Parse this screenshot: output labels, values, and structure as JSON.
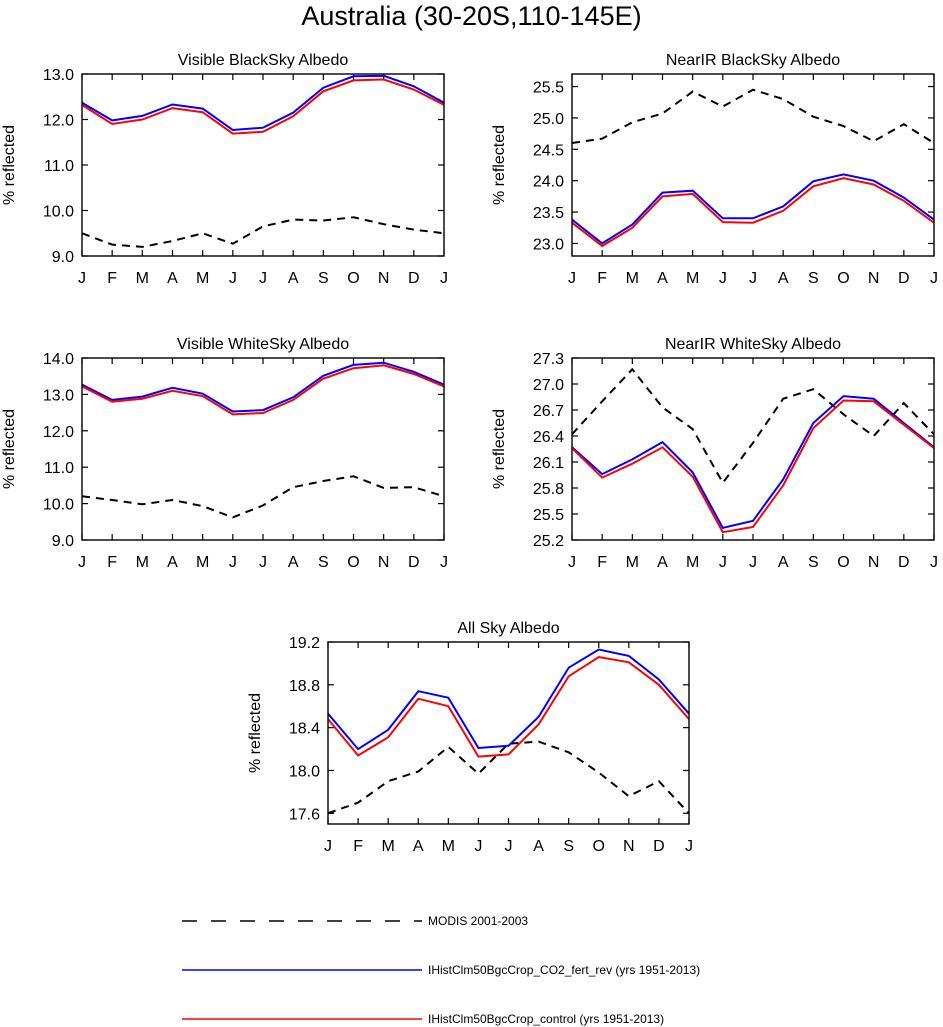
{
  "title": "Australia (30-20S,110-145E)",
  "chart_data": [
    {
      "type": "line",
      "title": "Visible BlackSky Albedo",
      "ylabel": "% reflected",
      "categories": [
        "J",
        "F",
        "M",
        "A",
        "M",
        "J",
        "J",
        "A",
        "S",
        "O",
        "N",
        "D",
        "J"
      ],
      "ylim": [
        9.0,
        13.0
      ],
      "yticks": [
        "9.0",
        "10.0",
        "11.0",
        "12.0",
        "13.0"
      ],
      "series": [
        {
          "name": "MODIS 2001-2003",
          "values": [
            9.5,
            9.25,
            9.2,
            9.33,
            9.5,
            9.27,
            9.65,
            9.8,
            9.78,
            9.85,
            9.7,
            9.58,
            9.5
          ]
        },
        {
          "name": "IHistClm50BgcCrop_CO2_fert_rev (yrs 1951-2013)",
          "values": [
            12.37,
            11.98,
            12.08,
            12.33,
            12.24,
            11.77,
            11.82,
            12.15,
            12.7,
            12.95,
            12.96,
            12.73,
            12.37
          ]
        },
        {
          "name": "IHistClm50BgcCrop_control (yrs 1951-2013)",
          "values": [
            12.32,
            11.9,
            12.0,
            12.25,
            12.16,
            11.69,
            11.73,
            12.07,
            12.62,
            12.86,
            12.88,
            12.66,
            12.32
          ]
        }
      ]
    },
    {
      "type": "line",
      "title": "NearIR BlackSky Albedo",
      "ylabel": "% reflected",
      "categories": [
        "J",
        "F",
        "M",
        "A",
        "M",
        "J",
        "J",
        "A",
        "S",
        "O",
        "N",
        "D",
        "J"
      ],
      "ylim": [
        22.8,
        25.7
      ],
      "yticks": [
        "23.0",
        "23.5",
        "24.0",
        "24.5",
        "25.0",
        "25.5"
      ],
      "series": [
        {
          "name": "MODIS 2001-2003",
          "values": [
            24.6,
            24.67,
            24.93,
            25.07,
            25.42,
            25.18,
            25.45,
            25.3,
            25.02,
            24.87,
            24.63,
            24.9,
            24.6
          ]
        },
        {
          "name": "IHistClm50BgcCrop_CO2_fert_rev (yrs 1951-2013)",
          "values": [
            23.38,
            23.0,
            23.3,
            23.81,
            23.84,
            23.4,
            23.4,
            23.59,
            23.99,
            24.1,
            24.0,
            23.73,
            23.38
          ]
        },
        {
          "name": "IHistClm50BgcCrop_control (yrs 1951-2013)",
          "values": [
            23.33,
            22.96,
            23.25,
            23.75,
            23.79,
            23.34,
            23.33,
            23.52,
            23.91,
            24.04,
            23.94,
            23.68,
            23.33
          ]
        }
      ]
    },
    {
      "type": "line",
      "title": "Visible WhiteSky Albedo",
      "ylabel": "% reflected",
      "categories": [
        "J",
        "F",
        "M",
        "A",
        "M",
        "J",
        "J",
        "A",
        "S",
        "O",
        "N",
        "D",
        "J"
      ],
      "ylim": [
        9.0,
        14.0
      ],
      "yticks": [
        "9.0",
        "10.0",
        "11.0",
        "12.0",
        "13.0",
        "14.0"
      ],
      "series": [
        {
          "name": "MODIS 2001-2003",
          "values": [
            10.2,
            10.1,
            9.98,
            10.1,
            9.93,
            9.62,
            9.95,
            10.45,
            10.62,
            10.75,
            10.43,
            10.45,
            10.2
          ]
        },
        {
          "name": "IHistClm50BgcCrop_CO2_fert_rev (yrs 1951-2013)",
          "values": [
            13.27,
            12.85,
            12.94,
            13.18,
            13.02,
            12.53,
            12.57,
            12.92,
            13.51,
            13.81,
            13.87,
            13.62,
            13.27
          ]
        },
        {
          "name": "IHistClm50BgcCrop_control (yrs 1951-2013)",
          "values": [
            13.22,
            12.8,
            12.88,
            13.1,
            12.95,
            12.45,
            12.49,
            12.85,
            13.43,
            13.72,
            13.8,
            13.56,
            13.22
          ]
        }
      ]
    },
    {
      "type": "line",
      "title": "NearIR WhiteSky Albedo",
      "ylabel": "% reflected",
      "categories": [
        "J",
        "F",
        "M",
        "A",
        "M",
        "J",
        "J",
        "A",
        "S",
        "O",
        "N",
        "D",
        "J"
      ],
      "ylim": [
        25.2,
        27.3
      ],
      "yticks": [
        "25.2",
        "25.5",
        "25.8",
        "26.1",
        "26.4",
        "26.7",
        "27.0",
        "27.3"
      ],
      "series": [
        {
          "name": "MODIS 2001-2003",
          "values": [
            26.42,
            26.8,
            27.17,
            26.73,
            26.48,
            25.86,
            26.32,
            26.83,
            26.94,
            26.65,
            26.4,
            26.78,
            26.42
          ]
        },
        {
          "name": "IHistClm50BgcCrop_CO2_fert_rev (yrs 1951-2013)",
          "values": [
            26.27,
            25.96,
            26.13,
            26.33,
            25.98,
            25.34,
            25.42,
            25.9,
            26.55,
            26.86,
            26.83,
            26.55,
            26.27
          ]
        },
        {
          "name": "IHistClm50BgcCrop_control (yrs 1951-2013)",
          "values": [
            26.26,
            25.92,
            26.08,
            26.27,
            25.93,
            25.29,
            25.35,
            25.83,
            26.49,
            26.81,
            26.8,
            26.53,
            26.26
          ]
        }
      ]
    },
    {
      "type": "line",
      "title": "All Sky Albedo",
      "ylabel": "% reflected",
      "categories": [
        "J",
        "F",
        "M",
        "A",
        "M",
        "J",
        "J",
        "A",
        "S",
        "O",
        "N",
        "D",
        "J"
      ],
      "ylim": [
        17.5,
        19.2
      ],
      "yticks": [
        "17.6",
        "18.0",
        "18.4",
        "18.8",
        "19.2"
      ],
      "series": [
        {
          "name": "MODIS 2001-2003",
          "values": [
            17.6,
            17.7,
            17.9,
            17.99,
            18.22,
            17.97,
            18.25,
            18.27,
            18.17,
            17.98,
            17.76,
            17.9,
            17.6
          ]
        },
        {
          "name": "IHistClm50BgcCrop_CO2_fert_rev (yrs 1951-2013)",
          "values": [
            18.53,
            18.2,
            18.38,
            18.74,
            18.68,
            18.21,
            18.23,
            18.5,
            18.96,
            19.13,
            19.07,
            18.85,
            18.53
          ]
        },
        {
          "name": "IHistClm50BgcCrop_control (yrs 1951-2013)",
          "values": [
            18.48,
            18.14,
            18.31,
            18.67,
            18.6,
            18.13,
            18.15,
            18.43,
            18.88,
            19.06,
            19.01,
            18.8,
            18.48
          ]
        }
      ]
    }
  ],
  "legend": {
    "placement": "bottom",
    "items": [
      {
        "label": "MODIS 2001-2003",
        "color": "#000000",
        "style": "dashed"
      },
      {
        "label": "IHistClm50BgcCrop_CO2_fert_rev (yrs 1951-2013)",
        "color": "#0000ff",
        "style": "solid"
      },
      {
        "label": "IHistClm50BgcCrop_control (yrs 1951-2013)",
        "color": "#ff0000",
        "style": "solid"
      }
    ]
  }
}
